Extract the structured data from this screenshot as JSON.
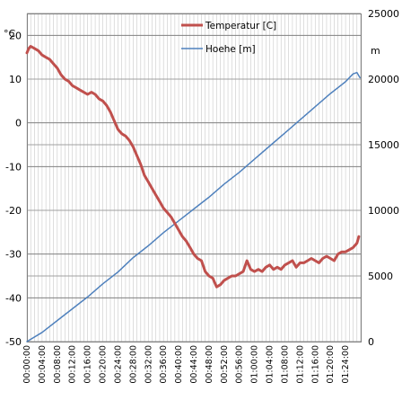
{
  "chart_data": {
    "type": "line",
    "y_unit_left": "°C",
    "y_unit_right": "m",
    "ylim_left": [
      -50,
      25
    ],
    "ylim_right": [
      0,
      25000
    ],
    "yticks_left": [
      20,
      10,
      0,
      -10,
      -20,
      -30,
      -40,
      -50
    ],
    "yticks_left_labels": [
      "20",
      "10",
      "0",
      "-10",
      "-20",
      "-30",
      "-40",
      "-50"
    ],
    "yticks_right": [
      25000,
      20000,
      15000,
      10000,
      5000,
      0
    ],
    "yticks_right_labels": [
      "25000",
      "20000",
      "15000",
      "10000",
      "5000",
      "0"
    ],
    "x_minutes": [
      0,
      4,
      8,
      12,
      16,
      20,
      24,
      28,
      32,
      36,
      40,
      44,
      48,
      52,
      56,
      60,
      64,
      68,
      72,
      76,
      80,
      84
    ],
    "x_tick_labels": [
      "00:00:00",
      "00:04:00",
      "00:08:00",
      "00:12:00",
      "00:16:00",
      "00:20:00",
      "00:24:00",
      "00:28:00",
      "00:32:00",
      "00:36:00",
      "00:40:00",
      "00:44:00",
      "00:48:00",
      "00:52:00",
      "00:56:00",
      "01:00:00",
      "01:04:00",
      "01:08:00",
      "01:12:00",
      "01:16:00",
      "01:20:00",
      "01:24:00"
    ],
    "x_range_minutes": [
      0,
      88
    ],
    "grid": true,
    "legend_position": "top-right",
    "series": [
      {
        "name": "Temperatur [C]",
        "axis": "left",
        "color": "#c0504d",
        "x": [
          0,
          0.5,
          1,
          2,
          3,
          4,
          5,
          6,
          7,
          8,
          9,
          10,
          11,
          12,
          13,
          14,
          15,
          16,
          17,
          18,
          19,
          20,
          21,
          22,
          23,
          24,
          25,
          26,
          27,
          28,
          29,
          30,
          31,
          32,
          33,
          34,
          35,
          36,
          37,
          38,
          39,
          40,
          41,
          42,
          43,
          44,
          45,
          46,
          47,
          48,
          49,
          50,
          51,
          52,
          53,
          54,
          55,
          56,
          57,
          58,
          59,
          60,
          61,
          62,
          63,
          64,
          65,
          66,
          67,
          68,
          69,
          70,
          71,
          72,
          73,
          74,
          75,
          76,
          77,
          78,
          79,
          80,
          81,
          82,
          83,
          84,
          85,
          86,
          87,
          87.5
        ],
        "y": [
          16,
          17,
          17.5,
          17,
          16.5,
          15.5,
          15,
          14.5,
          13.5,
          12.5,
          11,
          10,
          9.5,
          8.5,
          8,
          7.5,
          7,
          6.5,
          7,
          6.5,
          5.5,
          5,
          4,
          2.5,
          0.5,
          -1.5,
          -2.5,
          -3,
          -4,
          -5.5,
          -7.5,
          -9.5,
          -12,
          -13.5,
          -15,
          -16.5,
          -18,
          -19.5,
          -20.5,
          -21.5,
          -23,
          -24.5,
          -26,
          -27,
          -28.5,
          -30,
          -31,
          -31.5,
          -34,
          -35,
          -35.5,
          -37.5,
          -37,
          -36,
          -35.5,
          -35,
          -35,
          -34.5,
          -34,
          -31.5,
          -33.5,
          -34,
          -33.5,
          -34,
          -33,
          -32.5,
          -33.5,
          -33,
          -33.5,
          -32.5,
          -32,
          -31.5,
          -33,
          -32,
          -32,
          -31.5,
          -31,
          -31.5,
          -32,
          -31,
          -30.5,
          -31,
          -31.5,
          -30,
          -29.5,
          -29.5,
          -29,
          -28.5,
          -27.5,
          -26
        ]
      },
      {
        "name": "Hoehe [m]",
        "axis": "right",
        "color": "#4f81bd",
        "x": [
          0,
          4,
          8,
          12,
          16,
          20,
          24,
          28,
          32,
          36,
          40,
          44,
          48,
          52,
          56,
          60,
          64,
          68,
          72,
          76,
          80,
          84,
          86,
          87,
          87.8
        ],
        "y": [
          0,
          700,
          1600,
          2500,
          3400,
          4400,
          5300,
          6400,
          7300,
          8300,
          9200,
          10100,
          11000,
          12000,
          12900,
          13900,
          14900,
          15900,
          16900,
          17900,
          18900,
          19800,
          20400,
          20500,
          20100
        ]
      }
    ]
  }
}
